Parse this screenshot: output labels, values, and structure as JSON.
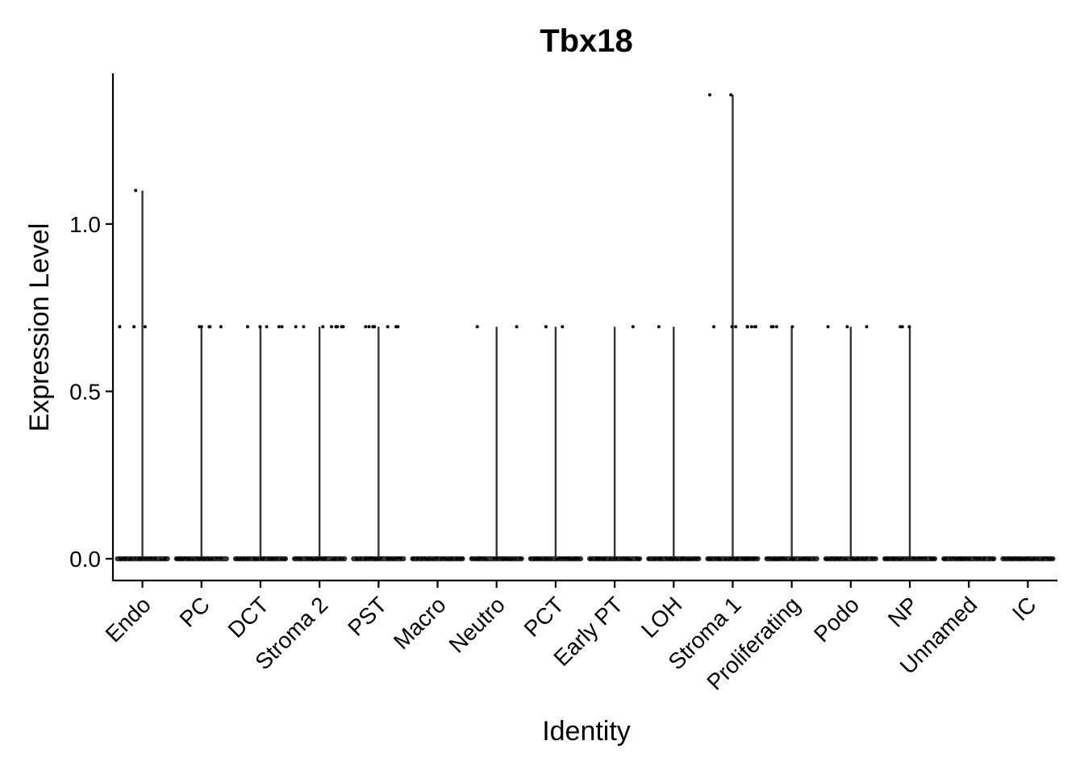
{
  "chart_data": {
    "type": "violin",
    "title": "Tbx18",
    "xlabel": "Identity",
    "ylabel": "Expression Level",
    "ylim": [
      -0.065,
      1.45
    ],
    "yticks": [
      0.0,
      0.5,
      1.0
    ],
    "ytick_labels": [
      "0.0",
      "0.5",
      "1.0"
    ],
    "categories": [
      "Endo",
      "PC",
      "DCT",
      "Stroma 2",
      "PST",
      "Macro",
      "Neutro",
      "PCT",
      "Early PT",
      "LOH",
      "Stroma 1",
      "Proliferating",
      "Podo",
      "NP",
      "Unnamed",
      "IC"
    ],
    "series": [
      {
        "category": "Endo",
        "max": 1.1,
        "points": [
          0.693,
          0.693,
          0.693,
          1.1
        ]
      },
      {
        "category": "PC",
        "max": 0.693,
        "points": [
          0.693,
          0.693,
          0.693,
          0.693,
          0.693
        ]
      },
      {
        "category": "DCT",
        "max": 0.693,
        "points": [
          0.693,
          0.693,
          0.693,
          0.693,
          0.693
        ]
      },
      {
        "category": "Stroma 2",
        "max": 0.693,
        "points": [
          0.693,
          0.693,
          0.693,
          0.693,
          0.693,
          0.693,
          0.693,
          0.693,
          0.693
        ]
      },
      {
        "category": "PST",
        "max": 0.693,
        "points": [
          0.693,
          0.693,
          0.693,
          0.693,
          0.693,
          0.693,
          0.693,
          0.693
        ]
      },
      {
        "category": "Macro",
        "max": 0.0,
        "points": []
      },
      {
        "category": "Neutro",
        "max": 0.693,
        "points": [
          0.693,
          0.693
        ]
      },
      {
        "category": "PCT",
        "max": 0.693,
        "points": [
          0.693,
          0.693
        ]
      },
      {
        "category": "Early PT",
        "max": 0.693,
        "points": [
          0.693
        ]
      },
      {
        "category": "LOH",
        "max": 0.693,
        "points": [
          0.693
        ]
      },
      {
        "category": "Stroma 1",
        "max": 1.386,
        "points": [
          0.693,
          0.693,
          0.693,
          0.693,
          0.693,
          0.693,
          0.693,
          0.693,
          1.386,
          1.386
        ]
      },
      {
        "category": "Proliferating",
        "max": 0.693,
        "points": [
          0.693,
          0.693,
          0.693,
          0.693
        ]
      },
      {
        "category": "Podo",
        "max": 0.693,
        "points": [
          0.693,
          0.693,
          0.693
        ]
      },
      {
        "category": "NP",
        "max": 0.693,
        "points": [
          0.693,
          0.693,
          0.693
        ]
      },
      {
        "category": "Unnamed",
        "max": 0.0,
        "points": []
      },
      {
        "category": "IC",
        "max": 0.0,
        "points": []
      }
    ],
    "grid": false,
    "legend": "none",
    "colors": {
      "violin": "#333333",
      "points": "#000000"
    }
  }
}
